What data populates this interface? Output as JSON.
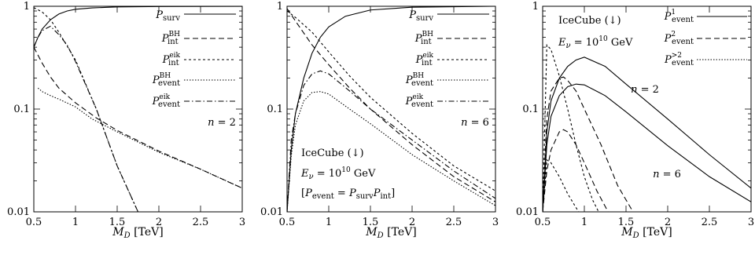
{
  "chart_data": [
    {
      "type": "line",
      "xlabel": "M_D [TeV]",
      "xlim": [
        0.5,
        3
      ],
      "ylim": [
        0.01,
        1
      ],
      "yscale": "log",
      "x_ticks": [
        "0.5",
        "1",
        "1.5",
        "2",
        "2.5",
        "3"
      ],
      "y_ticks": [
        "0.01",
        "0.1",
        "1"
      ],
      "legend_position": "top-right",
      "annotations": [
        {
          "text": "n = 2"
        }
      ],
      "series": [
        {
          "name": "P_surv",
          "style": "solid",
          "x": [
            0.5,
            0.55,
            0.6,
            0.7,
            0.8,
            0.9,
            1.0,
            1.2,
            1.5,
            2.0,
            3.0
          ],
          "y": [
            0.4,
            0.5,
            0.6,
            0.74,
            0.84,
            0.9,
            0.935,
            0.965,
            0.985,
            0.995,
            0.999
          ]
        },
        {
          "name": "P_int^BH",
          "style": "dashed",
          "x": [
            0.5,
            0.6,
            0.7,
            0.8,
            1.0,
            1.25,
            1.5,
            2.0,
            2.5,
            3.0
          ],
          "y": [
            0.4,
            0.28,
            0.205,
            0.16,
            0.115,
            0.082,
            0.062,
            0.039,
            0.026,
            0.017
          ]
        },
        {
          "name": "P_int^eik",
          "style": "dotted",
          "x": [
            0.5,
            0.6,
            0.7,
            0.8,
            1.0,
            1.25,
            1.5,
            1.75
          ],
          "y": [
            0.97,
            0.88,
            0.74,
            0.56,
            0.3,
            0.1,
            0.028,
            0.01
          ]
        },
        {
          "name": "P_event^BH",
          "style": "dotted-fine",
          "x": [
            0.55,
            0.6,
            0.7,
            0.8,
            1.0,
            1.2,
            1.5,
            2.0,
            2.5,
            3.0
          ],
          "y": [
            0.16,
            0.148,
            0.135,
            0.125,
            0.105,
            0.08,
            0.06,
            0.038,
            0.026,
            0.017
          ]
        },
        {
          "name": "P_event^eik",
          "style": "dash-dot",
          "x": [
            0.5,
            0.55,
            0.6,
            0.7,
            0.8,
            0.9,
            1.0,
            1.25,
            1.5,
            1.75
          ],
          "y": [
            0.4,
            0.5,
            0.58,
            0.64,
            0.53,
            0.42,
            0.29,
            0.1,
            0.028,
            0.01
          ]
        }
      ]
    },
    {
      "type": "line",
      "xlabel": "M_D [TeV]",
      "xlim": [
        0.5,
        3
      ],
      "ylim": [
        0.01,
        1
      ],
      "yscale": "log",
      "x_ticks": [
        "0.5",
        "1",
        "1.5",
        "2",
        "2.5",
        "3"
      ],
      "y_ticks": [
        "0.01",
        "0.1",
        "1"
      ],
      "legend_position": "top-right",
      "annotations": [
        {
          "text": "n = 6"
        },
        {
          "text": "IceCube (↓)"
        },
        {
          "text": "E_ν = 10^10 GeV"
        },
        {
          "text": "[P_event = P_surv P_int]"
        }
      ],
      "series": [
        {
          "name": "P_surv",
          "style": "solid",
          "x": [
            0.5,
            0.55,
            0.6,
            0.7,
            0.8,
            0.9,
            1.0,
            1.2,
            1.5,
            2.0,
            3.0
          ],
          "y": [
            0.01,
            0.04,
            0.09,
            0.2,
            0.35,
            0.5,
            0.63,
            0.8,
            0.92,
            0.98,
            1.0
          ]
        },
        {
          "name": "P_int^BH",
          "style": "dashed",
          "x": [
            0.5,
            0.6,
            0.7,
            0.8,
            1.0,
            1.25,
            1.5,
            2.0,
            2.5,
            3.0
          ],
          "y": [
            0.95,
            0.72,
            0.55,
            0.42,
            0.27,
            0.16,
            0.1,
            0.045,
            0.022,
            0.0125
          ]
        },
        {
          "name": "P_int^eik",
          "style": "dotted",
          "x": [
            0.5,
            0.6,
            0.7,
            0.8,
            1.0,
            1.25,
            1.5,
            2.0,
            2.5,
            3.0
          ],
          "y": [
            0.9,
            0.78,
            0.66,
            0.56,
            0.36,
            0.21,
            0.13,
            0.058,
            0.028,
            0.016
          ]
        },
        {
          "name": "P_event^BH",
          "style": "dotted-fine",
          "x": [
            0.5,
            0.55,
            0.6,
            0.7,
            0.8,
            0.9,
            1.0,
            1.25,
            1.5,
            2.0,
            2.5,
            3.0
          ],
          "y": [
            0.01,
            0.035,
            0.07,
            0.12,
            0.145,
            0.148,
            0.14,
            0.1,
            0.072,
            0.036,
            0.02,
            0.0115
          ]
        },
        {
          "name": "P_event^eik",
          "style": "dash-dot",
          "x": [
            0.5,
            0.55,
            0.6,
            0.7,
            0.8,
            0.9,
            1.0,
            1.25,
            1.5,
            2.0,
            2.5,
            3.0
          ],
          "y": [
            0.01,
            0.05,
            0.09,
            0.17,
            0.22,
            0.235,
            0.22,
            0.15,
            0.1,
            0.05,
            0.025,
            0.0135
          ]
        }
      ]
    },
    {
      "type": "line",
      "xlabel": "M_D [TeV]",
      "xlim": [
        0.5,
        3
      ],
      "ylim": [
        0.01,
        1
      ],
      "yscale": "log",
      "x_ticks": [
        "0.5",
        "1",
        "1.5",
        "2",
        "2.5",
        "3"
      ],
      "y_ticks": [
        "0.01",
        "0.1",
        "1"
      ],
      "legend_position": "top-right",
      "annotations": [
        {
          "text": "IceCube (↓)"
        },
        {
          "text": "E_ν = 10^10 GeV"
        },
        {
          "text": "n = 2"
        },
        {
          "text": "n = 6"
        }
      ],
      "series": [
        {
          "name": "P_event^1",
          "group": "n = 2",
          "style": "solid",
          "x": [
            0.5,
            0.55,
            0.6,
            0.7,
            0.8,
            0.9,
            1.0,
            1.25,
            1.5,
            2.0,
            2.5,
            3.0
          ],
          "y": [
            0.01,
            0.06,
            0.12,
            0.2,
            0.26,
            0.3,
            0.32,
            0.26,
            0.175,
            0.08,
            0.036,
            0.017
          ]
        },
        {
          "name": "P_event^1",
          "group": "n = 6",
          "style": "solid",
          "x": [
            0.5,
            0.55,
            0.6,
            0.7,
            0.8,
            0.9,
            1.0,
            1.25,
            1.5,
            2.0,
            2.5,
            3.0
          ],
          "y": [
            0.01,
            0.045,
            0.085,
            0.135,
            0.165,
            0.175,
            0.172,
            0.135,
            0.094,
            0.044,
            0.022,
            0.0125
          ]
        },
        {
          "name": "P_event^2",
          "group": "n = 2",
          "style": "dashed",
          "x": [
            0.5,
            0.55,
            0.6,
            0.7,
            0.75,
            0.8,
            0.9,
            1.0,
            1.2,
            1.4,
            1.6
          ],
          "y": [
            0.01,
            0.08,
            0.15,
            0.2,
            0.205,
            0.19,
            0.15,
            0.1,
            0.045,
            0.018,
            0.0095
          ]
        },
        {
          "name": "P_event^2",
          "group": "n = 6",
          "style": "dashed",
          "x": [
            0.5,
            0.55,
            0.6,
            0.7,
            0.75,
            0.8,
            0.9,
            1.0,
            1.15,
            1.3
          ],
          "y": [
            0.01,
            0.025,
            0.04,
            0.06,
            0.063,
            0.06,
            0.045,
            0.03,
            0.016,
            0.0095
          ]
        },
        {
          "name": "P_event^>2",
          "group": "n = 2",
          "style": "dotted",
          "x": [
            0.5,
            0.55,
            0.6,
            0.7,
            0.8,
            0.9,
            1.0,
            1.1,
            1.2
          ],
          "y": [
            0.01,
            0.42,
            0.38,
            0.21,
            0.1,
            0.045,
            0.022,
            0.013,
            0.009
          ]
        },
        {
          "name": "P_event^>2",
          "group": "n = 6",
          "style": "dotted",
          "x": [
            0.5,
            0.55,
            0.6,
            0.7,
            0.8,
            0.9,
            0.95
          ],
          "y": [
            0.01,
            0.032,
            0.03,
            0.022,
            0.015,
            0.011,
            0.0095
          ]
        }
      ]
    }
  ]
}
